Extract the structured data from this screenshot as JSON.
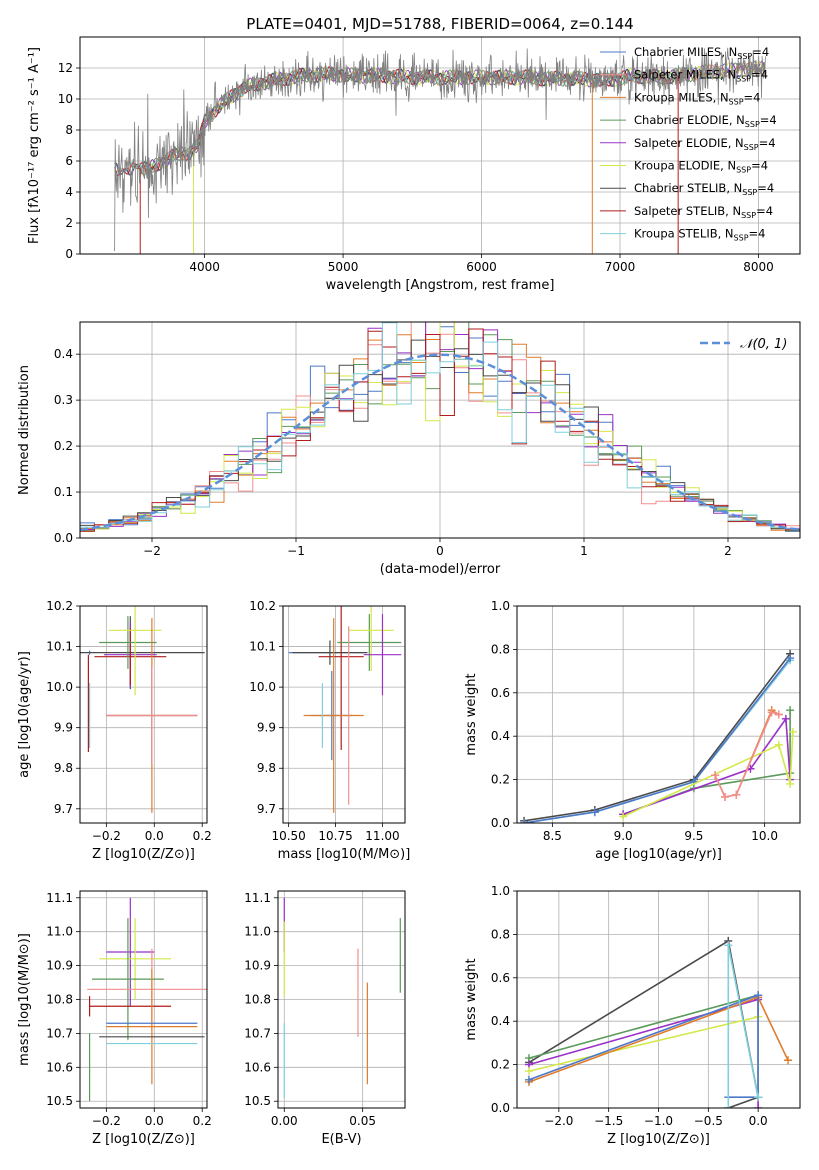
{
  "figure_title": "PLATE=0401, MJD=51788, FIBERID=0064, z=0.144",
  "colors": {
    "chabrier_miles": "#4c78c8",
    "salpeter_miles": "#f28e8e",
    "kroupa_miles": "#e07b2a",
    "chabrier_elodie": "#5a9a5a",
    "salpeter_elodie": "#9b30c8",
    "kroupa_elodie": "#d4e84a",
    "chabrier_stelib": "#4a4a4a",
    "salpeter_stelib": "#b01c1c",
    "kroupa_stelib": "#7ed0dc",
    "data": "#808080",
    "gaussian": "#5b8fd9"
  },
  "chart_data": [
    {
      "id": "spectrum",
      "type": "line",
      "xlabel": "wavelength [Angstrom, rest frame]",
      "ylabel": "Flux [fλ10⁻¹⁷ erg cm⁻² s⁻¹ A⁻¹]",
      "xlim": [
        3100,
        8300
      ],
      "ylim": [
        0,
        14
      ],
      "xticks": [
        4000,
        5000,
        6000,
        7000,
        8000
      ],
      "yticks": [
        0,
        2,
        4,
        6,
        8,
        10,
        12
      ],
      "legend_position": "top-right",
      "legend": [
        {
          "name": "Chabrier MILES, N",
          "sub": "SSP",
          "suffix": "=4",
          "color": "#4c78c8"
        },
        {
          "name": "Salpeter MILES, N",
          "sub": "SSP",
          "suffix": "=4",
          "color": "#f28e8e"
        },
        {
          "name": "Kroupa MILES, N",
          "sub": "SSP",
          "suffix": "=4",
          "color": "#e07b2a"
        },
        {
          "name": "Chabrier ELODIE, N",
          "sub": "SSP",
          "suffix": "=4",
          "color": "#5a9a5a"
        },
        {
          "name": "Salpeter ELODIE, N",
          "sub": "SSP",
          "suffix": "=4",
          "color": "#9b30c8"
        },
        {
          "name": "Kroupa ELODIE, N",
          "sub": "SSP",
          "suffix": "=4",
          "color": "#d4e84a"
        },
        {
          "name": "Chabrier STELIB, N",
          "sub": "SSP",
          "suffix": "=4",
          "color": "#4a4a4a"
        },
        {
          "name": "Salpeter STELIB, N",
          "sub": "SSP",
          "suffix": "=4",
          "color": "#b01c1c"
        },
        {
          "name": "Kroupa STELIB, N",
          "sub": "SSP",
          "suffix": "=4",
          "color": "#7ed0dc"
        }
      ],
      "continuum": {
        "x": [
          3350,
          3500,
          3600,
          3700,
          3800,
          3900,
          3950,
          4000,
          4100,
          4200,
          4300,
          4400,
          4500,
          4700,
          4900,
          5100,
          5300,
          5500,
          5700,
          5900,
          6100,
          6300,
          6500,
          6700,
          6900,
          7100,
          7300,
          7500,
          7700,
          7900,
          8050
        ],
        "y": [
          5.5,
          5.5,
          5.5,
          6.0,
          6.4,
          6.6,
          7.0,
          8.5,
          9.5,
          10.2,
          10.8,
          11.0,
          11.2,
          11.5,
          11.6,
          11.5,
          11.5,
          11.4,
          11.4,
          11.4,
          11.4,
          11.4,
          11.3,
          11.3,
          11.2,
          11.5,
          11.4,
          11.6,
          11.8,
          11.9,
          12.0
        ]
      }
    },
    {
      "id": "residuals",
      "type": "line",
      "xlabel": "(data-model)/error",
      "ylabel": "Normed distribution",
      "xlim": [
        -2.5,
        2.5
      ],
      "ylim": [
        0,
        0.47
      ],
      "xticks": [
        -2,
        -1,
        0,
        1,
        2
      ],
      "yticks": [
        0.0,
        0.1,
        0.2,
        0.3,
        0.4
      ],
      "legend_position": "top-right",
      "gaussian_label": "𝒩(0, 1)",
      "bin_width": 0.1
    },
    {
      "id": "age-vs-Z",
      "type": "scatter",
      "xlabel": "Z [log10(Z/Z⊙)]",
      "ylabel": "age [log10(age/yr)]",
      "xlim": [
        -0.31,
        0.22
      ],
      "ylim": [
        9.665,
        10.2
      ],
      "xticks": [
        -0.2,
        0.0,
        0.2
      ],
      "yticks": [
        9.7,
        9.8,
        9.9,
        10.0,
        10.1,
        10.2
      ],
      "points": [
        {
          "x": -0.27,
          "y": 10.085,
          "xerr": 0.0,
          "yerr": 0.005,
          "color": "#4c78c8"
        },
        {
          "x": -0.1,
          "y": 10.085,
          "xerr": 0.31,
          "yerr": 0.09,
          "color": "#4a4a4a"
        },
        {
          "x": -0.1,
          "y": 10.08,
          "xerr": 0.11,
          "yerr": 0.08,
          "color": "#9b30c8"
        },
        {
          "x": -0.1,
          "y": 10.075,
          "xerr": 0.15,
          "yerr": 0.07,
          "color": "#b01c1c"
        },
        {
          "x": -0.11,
          "y": 10.11,
          "xerr": 0.12,
          "yerr": 0.065,
          "color": "#5a9a5a"
        },
        {
          "x": -0.08,
          "y": 10.14,
          "xerr": 0.11,
          "yerr": 0.16,
          "color": "#d4e84a"
        },
        {
          "x": -0.27,
          "y": 9.93,
          "xerr": 0.0,
          "yerr": 0.08,
          "color": "#7ed0dc"
        },
        {
          "x": -0.01,
          "y": 9.93,
          "xerr": 0.19,
          "yerr": 0.12,
          "color": "#4c78c8"
        },
        {
          "x": -0.01,
          "y": 9.93,
          "xerr": 0.19,
          "yerr": 0.24,
          "color": "#e07b2a"
        },
        {
          "x": -0.01,
          "y": 9.93,
          "xerr": 0.19,
          "yerr": 0.12,
          "color": "#f28e8e"
        },
        {
          "x": -0.275,
          "y": 9.96,
          "xerr": 0.0,
          "yerr": 0.12,
          "color": "#b01c1c"
        }
      ]
    },
    {
      "id": "age-vs-mass",
      "type": "scatter",
      "xlabel": "mass [log10(M/M⊙)]",
      "ylabel": "",
      "xlim": [
        10.47,
        11.12
      ],
      "ylim": [
        9.665,
        10.2
      ],
      "xticks": [
        10.5,
        10.75,
        11.0
      ],
      "yticks": [
        9.7,
        9.8,
        9.9,
        10.0,
        10.1,
        10.2
      ],
      "points": [
        {
          "x": 10.7,
          "y": 10.085,
          "xerr": 0.2,
          "yerr": 0.0,
          "color": "#4c78c8"
        },
        {
          "x": 10.72,
          "y": 10.085,
          "xerr": 0.2,
          "yerr": 0.03,
          "color": "#4a4a4a"
        },
        {
          "x": 10.78,
          "y": 10.075,
          "xerr": 0.12,
          "yerr": 0.23,
          "color": "#b01c1c"
        },
        {
          "x": 10.93,
          "y": 10.11,
          "xerr": 0.17,
          "yerr": 0.07,
          "color": "#5a9a5a"
        },
        {
          "x": 10.94,
          "y": 10.14,
          "xerr": 0.12,
          "yerr": 0.1,
          "color": "#d4e84a"
        },
        {
          "x": 11.0,
          "y": 10.08,
          "xerr": 0.1,
          "yerr": 0.1,
          "color": "#9b30c8"
        },
        {
          "x": 10.73,
          "y": 9.93,
          "xerr": 0.11,
          "yerr": 0.11,
          "color": "#4c78c8"
        },
        {
          "x": 10.74,
          "y": 9.93,
          "xerr": 0.16,
          "yerr": 0.24,
          "color": "#e07b2a"
        },
        {
          "x": 10.82,
          "y": 9.93,
          "xerr": 0.0,
          "yerr": 0.22,
          "color": "#f28e8e"
        },
        {
          "x": 10.68,
          "y": 9.93,
          "xerr": 0.0,
          "yerr": 0.08,
          "color": "#7ed0dc"
        }
      ]
    },
    {
      "id": "weight-vs-age",
      "type": "line",
      "xlabel": "age [log10(age/yr)]",
      "ylabel": "mass weight",
      "xlim": [
        8.25,
        10.25
      ],
      "ylim": [
        0,
        1.0
      ],
      "xticks": [
        8.5,
        9.0,
        9.5,
        10.0
      ],
      "yticks": [
        0.0,
        0.2,
        0.4,
        0.6,
        0.8,
        1.0
      ],
      "series": [
        {
          "color": "#4a4a4a",
          "x": [
            8.3,
            8.8,
            9.5,
            10.18
          ],
          "y": [
            0.01,
            0.06,
            0.2,
            0.78
          ]
        },
        {
          "color": "#7ed0dc",
          "x": [
            8.3,
            8.8,
            9.5,
            10.18
          ],
          "y": [
            0.0,
            0.05,
            0.19,
            0.75
          ]
        },
        {
          "color": "#4c78c8",
          "x": [
            8.3,
            8.8,
            9.5,
            10.18
          ],
          "y": [
            0.0,
            0.05,
            0.19,
            0.76
          ]
        },
        {
          "color": "#5a9a5a",
          "x": [
            9.0,
            9.5,
            10.18,
            10.18
          ],
          "y": [
            0.04,
            0.16,
            0.23,
            0.52
          ]
        },
        {
          "color": "#9b30c8",
          "x": [
            9.0,
            9.9,
            10.15,
            10.18
          ],
          "y": [
            0.04,
            0.25,
            0.48,
            0.2
          ]
        },
        {
          "color": "#d4e84a",
          "x": [
            9.0,
            10.1,
            10.18,
            10.2
          ],
          "y": [
            0.03,
            0.36,
            0.18,
            0.42
          ]
        },
        {
          "color": "#e07b2a",
          "x": [
            9.65,
            9.72,
            9.8,
            10.05,
            10.1
          ],
          "y": [
            0.22,
            0.12,
            0.13,
            0.52,
            0.5
          ]
        },
        {
          "color": "#f28e8e",
          "x": [
            9.65,
            9.72,
            9.8,
            10.05,
            10.1
          ],
          "y": [
            0.22,
            0.12,
            0.13,
            0.51,
            0.5
          ]
        }
      ]
    },
    {
      "id": "mass-vs-Z",
      "type": "scatter",
      "xlabel": "Z [log10(Z/Z⊙)]",
      "ylabel": "mass [log10(M/M⊙)]",
      "xlim": [
        -0.31,
        0.22
      ],
      "ylim": [
        10.48,
        11.12
      ],
      "xticks": [
        -0.2,
        0.0,
        0.2
      ],
      "yticks": [
        10.5,
        10.6,
        10.7,
        10.8,
        10.9,
        11.0,
        11.1
      ],
      "points": [
        {
          "x": -0.1,
          "y": 10.94,
          "xerr": 0.1,
          "yerr": 0.16,
          "color": "#9b30c8"
        },
        {
          "x": -0.08,
          "y": 10.92,
          "xerr": 0.15,
          "yerr": 0.12,
          "color": "#d4e84a"
        },
        {
          "x": -0.11,
          "y": 10.86,
          "xerr": 0.15,
          "yerr": 0.18,
          "color": "#5a9a5a"
        },
        {
          "x": -0.01,
          "y": 10.83,
          "xerr": 0.27,
          "yerr": 0.12,
          "color": "#f28e8e"
        },
        {
          "x": -0.27,
          "y": 10.78,
          "xerr": 0.0,
          "yerr": 0.03,
          "color": "#b01c1c"
        },
        {
          "x": -0.1,
          "y": 10.78,
          "xerr": 0.17,
          "yerr": 0.0,
          "color": "#b01c1c"
        },
        {
          "x": -0.01,
          "y": 10.72,
          "xerr": 0.19,
          "yerr": 0.17,
          "color": "#e07b2a"
        },
        {
          "x": -0.01,
          "y": 10.73,
          "xerr": 0.19,
          "yerr": 0.0,
          "color": "#4c78c8"
        },
        {
          "x": -0.01,
          "y": 10.69,
          "xerr": 0.22,
          "yerr": 0.0,
          "color": "#4a4a4a"
        },
        {
          "x": -0.27,
          "y": 10.6,
          "xerr": 0.0,
          "yerr": 0.1,
          "color": "#5a9a5a"
        },
        {
          "x": -0.01,
          "y": 10.67,
          "xerr": 0.19,
          "yerr": 0.0,
          "color": "#7ed0dc"
        }
      ]
    },
    {
      "id": "mass-vs-EBV",
      "type": "scatter",
      "xlabel": "E(B-V)",
      "ylabel": "",
      "xlim": [
        -0.004,
        0.077
      ],
      "ylim": [
        10.48,
        11.12
      ],
      "xticks": [
        0.0,
        0.05
      ],
      "yticks": [
        10.5,
        10.6,
        10.7,
        10.8,
        10.9,
        11.0,
        11.1
      ],
      "points": [
        {
          "x": 0.0,
          "y": 11.02,
          "xerr": 0.0,
          "yerr": 0.08,
          "color": "#9b30c8"
        },
        {
          "x": 0.0,
          "y": 10.92,
          "xerr": 0.0,
          "yerr": 0.11,
          "color": "#d4e84a"
        },
        {
          "x": 0.0,
          "y": 10.62,
          "xerr": 0.0,
          "yerr": 0.11,
          "color": "#7ed0dc"
        },
        {
          "x": 0.047,
          "y": 10.82,
          "xerr": 0.0,
          "yerr": 0.13,
          "color": "#f28e8e"
        },
        {
          "x": 0.053,
          "y": 10.7,
          "xerr": 0.0,
          "yerr": 0.15,
          "color": "#e07b2a"
        },
        {
          "x": 0.074,
          "y": 10.93,
          "xerr": 0.0,
          "yerr": 0.11,
          "color": "#5a9a5a"
        }
      ]
    },
    {
      "id": "weight-vs-Z",
      "type": "line",
      "xlabel": "Z [log10(Z/Z⊙)]",
      "ylabel": "mass weight",
      "xlim": [
        -2.42,
        0.42
      ],
      "ylim": [
        0,
        1.0
      ],
      "xticks": [
        -2.0,
        -1.5,
        -1.0,
        -0.5,
        0.0
      ],
      "yticks": [
        0.0,
        0.2,
        0.4,
        0.6,
        0.8,
        1.0
      ],
      "series": [
        {
          "color": "#4a4a4a",
          "x": [
            -2.3,
            -0.3,
            0.0,
            -0.3
          ],
          "y": [
            0.21,
            0.77,
            0.05,
            0.0
          ]
        },
        {
          "color": "#5a9a5a",
          "x": [
            -2.3,
            0.0,
            0.0
          ],
          "y": [
            0.23,
            0.52,
            0.05
          ]
        },
        {
          "color": "#9b30c8",
          "x": [
            -2.3,
            0.0,
            0.0
          ],
          "y": [
            0.2,
            0.5,
            0.0
          ]
        },
        {
          "color": "#d4e84a",
          "x": [
            -2.3,
            0.0,
            0.0
          ],
          "y": [
            0.17,
            0.42,
            0.05
          ]
        },
        {
          "color": "#e07b2a",
          "x": [
            -2.3,
            0.0,
            0.3
          ],
          "y": [
            0.12,
            0.51,
            0.22
          ]
        },
        {
          "color": "#4c78c8",
          "x": [
            -2.3,
            0.0,
            0.0,
            -0.3
          ],
          "y": [
            0.13,
            0.52,
            0.05,
            0.05
          ]
        },
        {
          "color": "#7ed0dc",
          "x": [
            -0.3,
            -0.3,
            0.0
          ],
          "y": [
            0.0,
            0.75,
            0.05
          ]
        }
      ]
    }
  ]
}
